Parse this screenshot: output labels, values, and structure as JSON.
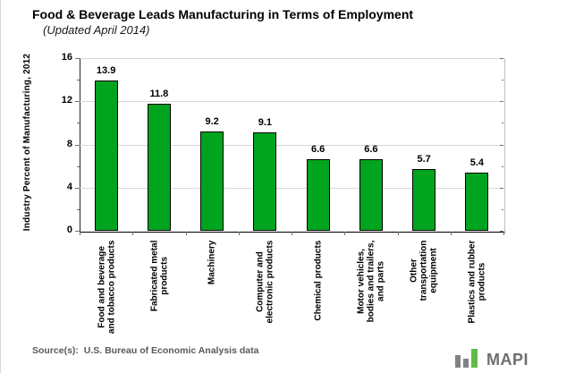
{
  "header": {
    "title": "Food & Beverage Leads Manufacturing in Terms of Employment",
    "subtitle": "(Updated April 2014)"
  },
  "chart_data": {
    "type": "bar",
    "title": "Food & Beverage Leads Manufacturing in Terms of Employment",
    "subtitle": "(Updated April 2014)",
    "categories": [
      "Food and beverage\nand tobacco products",
      "Fabricated metal\nproducts",
      "Machinery",
      "Computer and\nelectronic products",
      "Chemical products",
      "Motor vehicles,\nbodies and trailers,\nand parts",
      "Other\ntransportation\nequipment",
      "Plastics and rubber\nproducts"
    ],
    "values": [
      13.9,
      11.8,
      9.2,
      9.1,
      6.6,
      6.6,
      5.7,
      5.4
    ],
    "data_labels": [
      "13.9",
      "11.8",
      "9.2",
      "9.1",
      "6.6",
      "6.6",
      "5.7",
      "5.4"
    ],
    "xlabel": "",
    "ylabel": "Industry Percent of Manufacturing,  2012",
    "ylim": [
      0,
      16
    ],
    "yticks": [
      0,
      4,
      8,
      12,
      16
    ],
    "yticks_minor": [
      2,
      6,
      10,
      14
    ],
    "grid": true,
    "legend": "none",
    "bar_color": "#00A41F",
    "bar_border_color": "#000000"
  },
  "footer": {
    "source": "Source(s):  U.S. Bureau of Economic Analysis data",
    "logo_text": "MAPI",
    "logo_green": "#62BB46",
    "logo_gray": "#808285"
  }
}
